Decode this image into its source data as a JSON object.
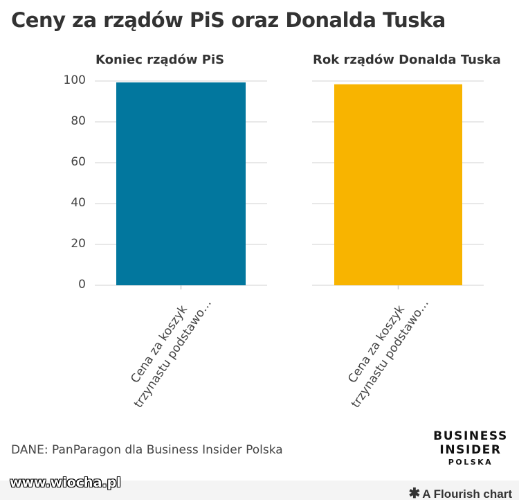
{
  "title": "Ceny za rządów PiS oraz Donalda Tuska",
  "source": "DANE: PanParagon dla Business Insider Polska",
  "logo": {
    "line1": "BUSINESS",
    "line2": "INSIDER",
    "line3": "POLSKA"
  },
  "watermark": "www.wiocha.pl",
  "credit": "A Flourish chart",
  "credit_icon": "asterisk-icon",
  "colors": {
    "pis": "#02779e",
    "tusk": "#f8b400",
    "grid": "#e8e8e8"
  },
  "chart_data": [
    {
      "type": "bar",
      "title": "Koniec rządów PiS",
      "categories": [
        "Cena za koszyk\ntrzynastu podstawo…"
      ],
      "values": [
        99.3
      ],
      "ylim": [
        0,
        100
      ],
      "yticks": [
        0,
        20,
        40,
        60,
        80,
        100
      ],
      "grid": true
    },
    {
      "type": "bar",
      "title": "Rok rządów Donalda Tuska",
      "categories": [
        "Cena za koszyk\ntrzynastu podstawo…"
      ],
      "values": [
        98.4
      ],
      "ylim": [
        0,
        100
      ],
      "yticks": [
        0,
        20,
        40,
        60,
        80,
        100
      ],
      "grid": true
    }
  ]
}
